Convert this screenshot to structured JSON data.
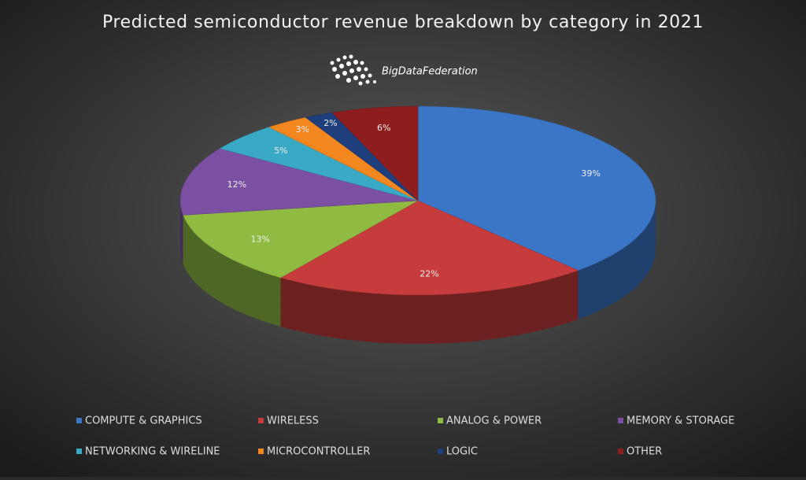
{
  "chart_data": {
    "type": "pie3d",
    "title": "Predicted semiconductor revenue breakdown by category in 2021",
    "logo": "BigDataFederation",
    "categories": [
      "COMPUTE & GRAPHICS",
      "WIRELESS",
      "ANALOG & POWER",
      "MEMORY & STORAGE",
      "NETWORKING & WIRELINE",
      "MICROCONTROLLER",
      "LOGIC",
      "OTHER"
    ],
    "values": [
      39,
      22,
      13,
      12,
      5,
      3,
      2,
      6
    ],
    "value_labels": [
      "39%",
      "22%",
      "13%",
      "12%",
      "5%",
      "3%",
      "2%",
      "6%"
    ],
    "colors": [
      "#3b76c6",
      "#c63b3b",
      "#8fbb42",
      "#7b4fa2",
      "#3aa9c6",
      "#f2861f",
      "#1f3f7c",
      "#8e1d1d"
    ],
    "legend": "bottom"
  }
}
